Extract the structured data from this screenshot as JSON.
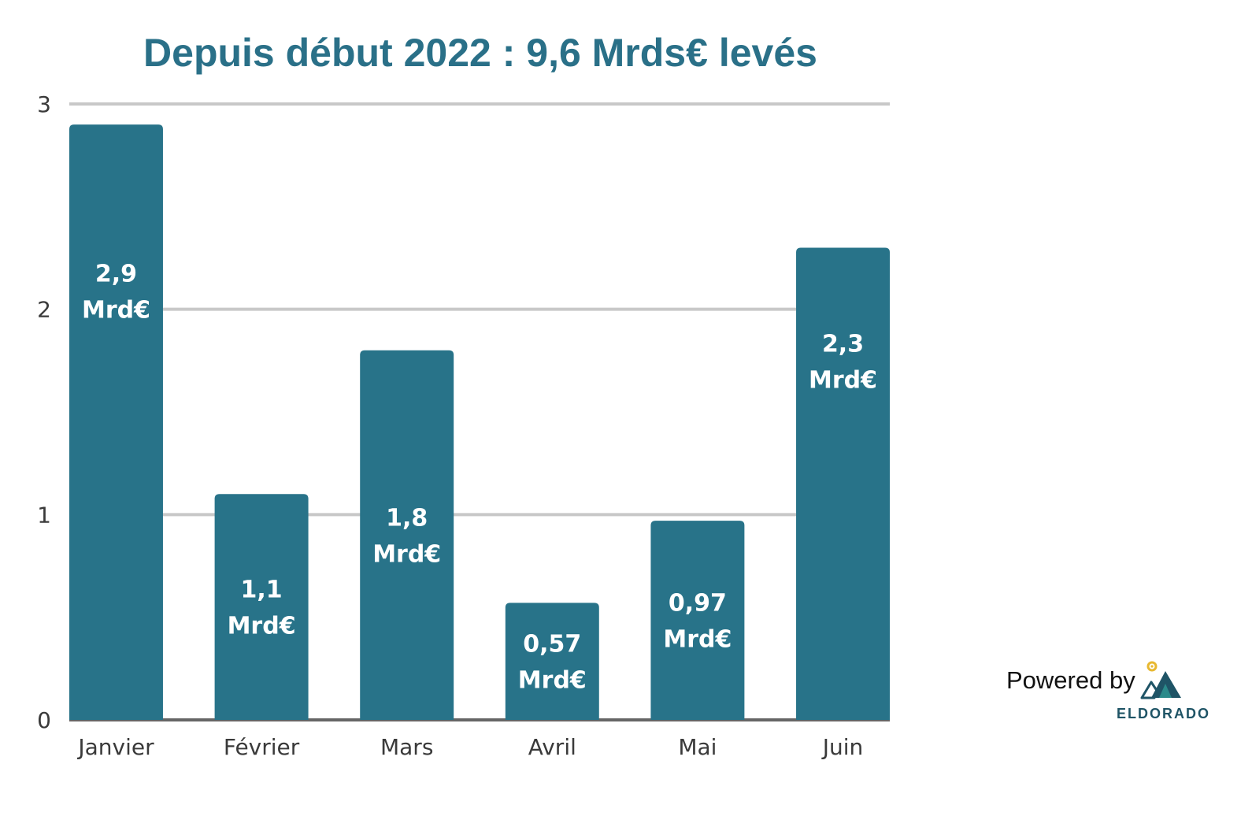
{
  "chart_data": {
    "type": "bar",
    "title": "Depuis début 2022 : 9,6 Mrds€ levés",
    "categories": [
      "Janvier",
      "Février",
      "Mars",
      "Avril",
      "Mai",
      "Juin"
    ],
    "values": [
      2.9,
      1.1,
      1.8,
      0.57,
      0.97,
      2.3
    ],
    "data_labels": [
      [
        "2,9",
        "Mrd€"
      ],
      [
        "1,1",
        "Mrd€"
      ],
      [
        "1,8",
        "Mrd€"
      ],
      [
        "0,57",
        "Mrd€"
      ],
      [
        "0,97",
        "Mrd€"
      ],
      [
        "2,3",
        "Mrd€"
      ]
    ],
    "ylim": [
      0,
      3
    ],
    "yticks": [
      "0",
      "1",
      "2",
      "3"
    ],
    "xlabel": "",
    "ylabel": "",
    "grid": true,
    "bar_color": "#287389"
  },
  "branding": {
    "powered_by": "Powered by",
    "name": "ELDORADO",
    "logo_icon": "eldorado-mountain-logo-icon",
    "logo_colors": [
      "#1f5466",
      "#2a8a8a",
      "#e8b830"
    ]
  }
}
